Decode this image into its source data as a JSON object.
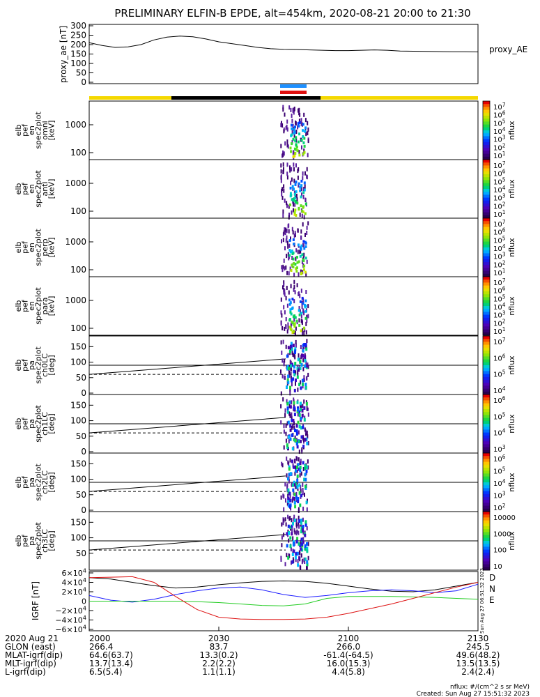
{
  "title": "PRELIMINARY ELFIN-B EPDE, alt=454km, 2020-08-21 20:00 to 21:30",
  "colors": {
    "status_yellow": "#f5d800",
    "status_black": "#000000",
    "tag_blue": "#1e90ff",
    "tag_red": "#e01010",
    "grf_d": "#000000",
    "grf_n": "#1a1aff",
    "grf_e": "#22cc22",
    "grf_red": "#dd1111"
  },
  "chart_data": [
    {
      "type": "line",
      "name": "proxy_ae",
      "ylabel": "proxy_ae [nT]",
      "legend": "proxy_AE",
      "yticks": [
        "300",
        "250",
        "200",
        "150",
        "100",
        "50",
        "0"
      ],
      "ylim": [
        0,
        300
      ],
      "x": [
        0,
        3,
        6,
        9,
        12,
        15,
        18,
        21,
        24,
        27,
        30,
        33,
        36,
        39,
        42,
        45,
        48,
        51,
        54,
        57,
        60,
        63,
        66,
        69,
        72,
        75,
        78,
        81,
        84,
        87,
        90
      ],
      "values": [
        210,
        195,
        185,
        188,
        200,
        225,
        240,
        245,
        242,
        230,
        215,
        205,
        195,
        185,
        178,
        175,
        174,
        172,
        170,
        168,
        168,
        170,
        172,
        170,
        166,
        165,
        164,
        163,
        162,
        162,
        161
      ]
    },
    {
      "type": "heatmap",
      "name": "elb pef en spec2plot omni",
      "ylabel": [
        "elb",
        "pef",
        "en",
        "spec2plot",
        "omni",
        "[keV]"
      ],
      "yticks": [
        "1000",
        "100"
      ],
      "colorbar": {
        "label": "nflux",
        "ticks": [
          "10^7",
          "10^6",
          "10^5",
          "10^4",
          "10^3",
          "10^2",
          "10^1"
        ]
      }
    },
    {
      "type": "heatmap",
      "name": "elb pef en spec2plot anti",
      "ylabel": [
        "elb",
        "pef",
        "en",
        "spec2plot",
        "anti",
        "[keV]"
      ],
      "yticks": [
        "1000",
        "100"
      ],
      "colorbar": {
        "label": "nflux",
        "ticks": [
          "10^7",
          "10^6",
          "10^5",
          "10^4",
          "10^3",
          "10^2",
          "10^1"
        ]
      }
    },
    {
      "type": "heatmap",
      "name": "elb pef en spec2plot perp",
      "ylabel": [
        "elb",
        "pef",
        "en",
        "spec2plot",
        "perp",
        "[keV]"
      ],
      "yticks": [
        "1000",
        "100"
      ],
      "colorbar": {
        "label": "nflux",
        "ticks": [
          "10^7",
          "10^6",
          "10^5",
          "10^4",
          "10^3",
          "10^2",
          "10^1"
        ]
      }
    },
    {
      "type": "heatmap",
      "name": "elb pef en spec2plot para",
      "ylabel": [
        "elb",
        "pef",
        "en",
        "spec2plot",
        "para",
        "[keV]"
      ],
      "yticks": [
        "1000",
        "100"
      ],
      "colorbar": {
        "label": "nflux",
        "ticks": [
          "10^7",
          "10^6",
          "10^5",
          "10^4",
          "10^3",
          "10^2",
          "10^1"
        ]
      }
    },
    {
      "type": "heatmap",
      "name": "elb pef pa spec2plot ch0LC",
      "ylabel": [
        "elb",
        "pef",
        "pa",
        "spec2plot",
        "ch0LC",
        "[deg]"
      ],
      "yticks": [
        "150",
        "100",
        "50",
        "0"
      ],
      "colorbar": {
        "label": "nflux",
        "ticks": [
          "10^7",
          "10^6",
          "10^5",
          "10^4"
        ]
      }
    },
    {
      "type": "heatmap",
      "name": "elb pef pa spec2plot ch1LC",
      "ylabel": [
        "elb",
        "pef",
        "pa",
        "spec2plot",
        "ch1LC",
        "[deg]"
      ],
      "yticks": [
        "150",
        "100",
        "50",
        "0"
      ],
      "colorbar": {
        "label": "nflux",
        "ticks": [
          "10^6",
          "10^5",
          "10^4",
          "10^3"
        ]
      }
    },
    {
      "type": "heatmap",
      "name": "elb pef pa spec2plot ch2LC",
      "ylabel": [
        "elb",
        "pef",
        "pa",
        "spec2plot",
        "ch2LC",
        "[deg]"
      ],
      "yticks": [
        "150",
        "100",
        "50",
        "0"
      ],
      "colorbar": {
        "label": "nflux",
        "ticks": [
          "10^6",
          "10^5",
          "10^4",
          "10^3",
          "10^2"
        ]
      }
    },
    {
      "type": "heatmap",
      "name": "elb pef pa spec2plot ch3LC",
      "ylabel": [
        "elb",
        "pef",
        "pa",
        "spec2plot",
        "ch3LC",
        "[deg]"
      ],
      "yticks": [
        "150",
        "100",
        "50"
      ],
      "colorbar": {
        "label": "nflux",
        "ticks": [
          "10000",
          "1000",
          "100",
          "10"
        ]
      }
    },
    {
      "type": "line",
      "name": "IGRF",
      "ylabel": "IGRF [nT]",
      "yticks": [
        "6×10^4",
        "4×10^4",
        "2×10^4",
        "0",
        "−2×10^4",
        "−4×10^4",
        "−6×10^4"
      ],
      "ylim": [
        -60000,
        60000
      ],
      "legend": [
        "D",
        "N",
        "E"
      ],
      "x": [
        0,
        5,
        10,
        15,
        20,
        25,
        30,
        35,
        40,
        45,
        50,
        55,
        60,
        65,
        70,
        75,
        80,
        85,
        90
      ],
      "series": [
        {
          "name": "D",
          "values": [
            50000,
            47000,
            40000,
            33000,
            28000,
            30000,
            35000,
            39000,
            42000,
            43000,
            42000,
            38000,
            32000,
            26000,
            21000,
            20000,
            24000,
            32000,
            40000
          ]
        },
        {
          "name": "N",
          "values": [
            12000,
            2000,
            -2000,
            4000,
            14000,
            22000,
            28000,
            30000,
            24000,
            14000,
            8000,
            12000,
            18000,
            22000,
            24000,
            22000,
            18000,
            22000,
            36000
          ]
        },
        {
          "name": "E",
          "values": [
            0,
            0,
            0,
            0,
            0,
            -1000,
            -3000,
            -6000,
            -9000,
            -10000,
            -6000,
            6000,
            10000,
            10000,
            10000,
            9000,
            8000,
            6000,
            4000
          ]
        },
        {
          "values": [
            50000,
            51000,
            52000,
            40000,
            10000,
            -18000,
            -34000,
            -38000,
            -39000,
            -39000,
            -38000,
            -34000,
            -26000,
            -16000,
            -6000,
            6000,
            18000,
            30000,
            40000
          ]
        }
      ]
    }
  ],
  "xaxis": {
    "ticks": [
      "2000",
      "2030",
      "2100",
      "2130"
    ],
    "rows": [
      {
        "label": "2020 Aug 21",
        "values": [
          "2000",
          "2030",
          "2100",
          "2130"
        ]
      },
      {
        "label": "GLON (east)",
        "values": [
          "266.4",
          "83.7",
          "266.0",
          "245.5"
        ]
      },
      {
        "label": "MLAT-igrf(dip)",
        "values": [
          "64.6(63.7)",
          "13.3(0.2)",
          "-61.4(-64.5)",
          "49.6(48.2)"
        ]
      },
      {
        "label": "MLT-igrf(dip)",
        "values": [
          "13.7(13.4)",
          "2.2(2.2)",
          "16.0(15.3)",
          "13.5(13.5)"
        ]
      },
      {
        "label": "L-igrf(dip)",
        "values": [
          "6.5(5.4)",
          "1.1(1.1)",
          "4.4(5.8)",
          "2.4(2.4)"
        ]
      }
    ]
  },
  "footer": {
    "units": "nflux: #/(cm^2 s sr MeV)",
    "created": "Created: Sun Aug 27 15:51:32 2023",
    "side_stamp": "Sun Aug 27 06:51:32 2023"
  }
}
